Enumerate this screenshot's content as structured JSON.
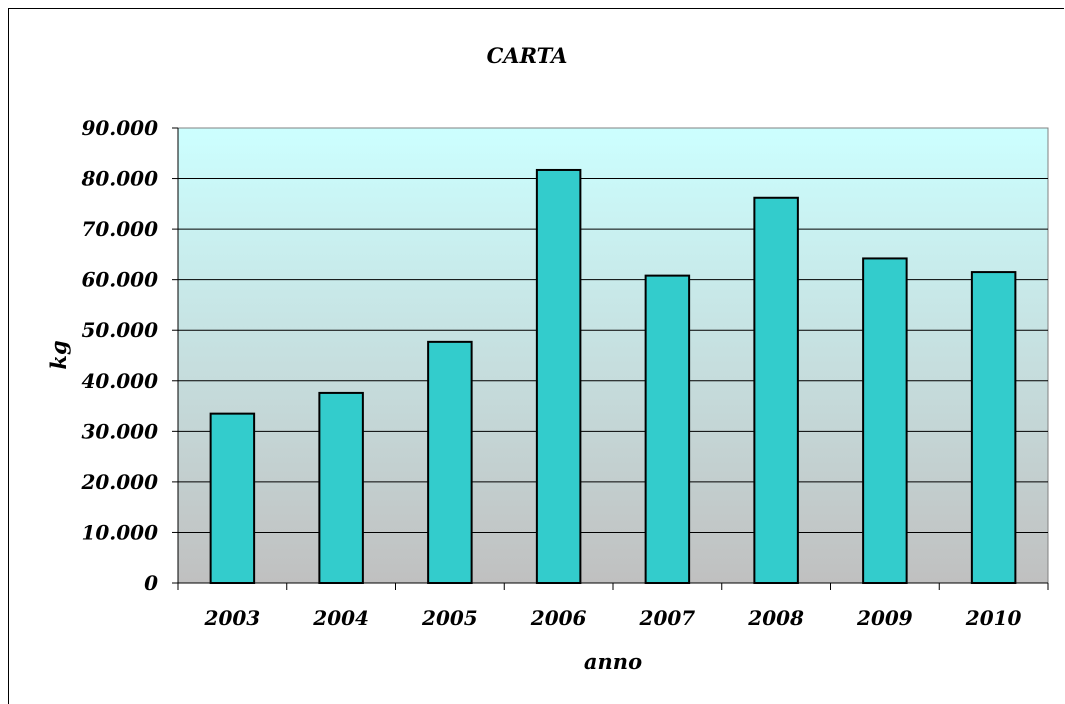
{
  "chart_data": {
    "type": "bar",
    "title": "CARTA",
    "xlabel": "anno",
    "ylabel": "kg",
    "categories": [
      "2003",
      "2004",
      "2005",
      "2006",
      "2007",
      "2008",
      "2009",
      "2010"
    ],
    "values": [
      33500,
      37600,
      47700,
      81700,
      60800,
      76200,
      64200,
      61500
    ],
    "ylim": [
      0,
      90000
    ],
    "yticks": [
      0,
      10000,
      20000,
      30000,
      40000,
      50000,
      60000,
      70000,
      80000,
      90000
    ],
    "ytick_labels": [
      "0",
      "10.000",
      "20.000",
      "30.000",
      "40.000",
      "50.000",
      "60.000",
      "70.000",
      "80.000",
      "90.000"
    ],
    "grid": true,
    "legend": "none",
    "colors": {
      "bar": "#33CCCC",
      "plot_bg_top": "#CCFFFF",
      "plot_bg_bottom": "#C0C0C0"
    }
  }
}
